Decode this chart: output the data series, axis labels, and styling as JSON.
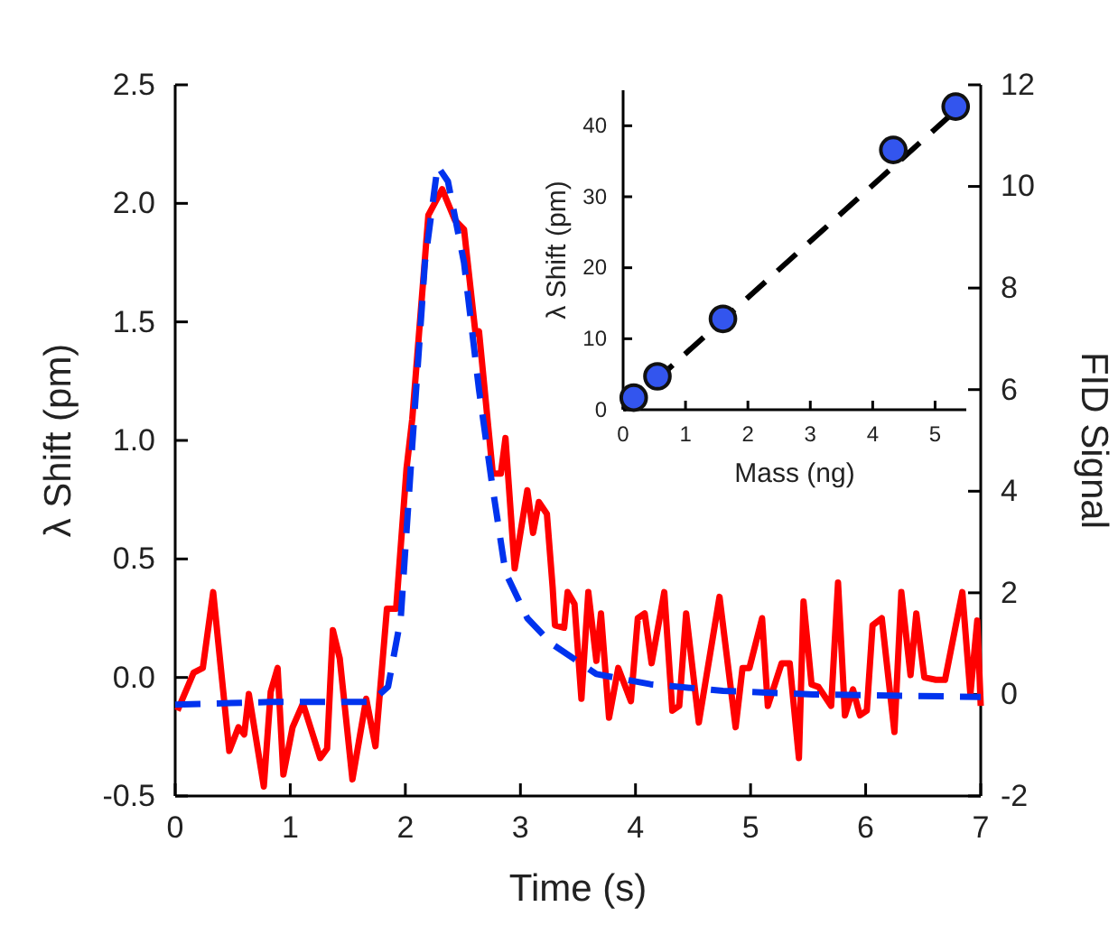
{
  "chart_data": [
    {
      "type": "line",
      "xlabel": "Time (s)",
      "ylabel": "λ Shift (pm)",
      "y2label": "FID Signal",
      "xlim": [
        0,
        7
      ],
      "xticks": [
        0,
        1,
        2,
        3,
        4,
        5,
        6,
        7
      ],
      "ylim": [
        -0.5,
        2.5
      ],
      "yticks": [
        {
          "value": -0.5,
          "label": "-0.5"
        },
        {
          "value": 0,
          "label": "0.0"
        },
        {
          "value": 0.5,
          "label": "0.5"
        },
        {
          "value": 1,
          "label": "1.0"
        },
        {
          "value": 1.5,
          "label": "1.5"
        },
        {
          "value": 2,
          "label": "2.0"
        },
        {
          "value": 2.5,
          "label": "2.5"
        }
      ],
      "y2lim": [
        -2,
        12
      ],
      "y2ticks": [
        -2,
        0,
        2,
        4,
        6,
        8,
        10,
        12
      ],
      "marker": "none",
      "series": [
        {
          "color": "#ff0000",
          "line_style": "solid",
          "x": [
            0.02,
            0.16,
            0.24,
            0.33,
            0.47,
            0.55,
            0.6,
            0.64,
            0.77,
            0.83,
            0.89,
            0.94,
            1.02,
            1.11,
            1.26,
            1.32,
            1.37,
            1.43,
            1.54,
            1.66,
            1.74,
            1.84,
            1.92,
            2.01,
            2.06,
            2.2,
            2.32,
            2.43,
            2.51,
            2.61,
            2.64,
            2.76,
            2.83,
            2.87,
            2.95,
            3.06,
            3.11,
            3.16,
            3.23,
            3.28,
            3.3,
            3.38,
            3.41,
            3.47,
            3.53,
            3.59,
            3.66,
            3.7,
            3.77,
            3.85,
            3.96,
            4.02,
            4.08,
            4.14,
            4.25,
            4.32,
            4.38,
            4.44,
            4.55,
            4.73,
            4.87,
            4.93,
            4.99,
            5.1,
            5.15,
            5.27,
            5.34,
            5.42,
            5.46,
            5.53,
            5.59,
            5.7,
            5.76,
            5.82,
            5.89,
            5.95,
            6.01,
            6.06,
            6.14,
            6.25,
            6.31,
            6.39,
            6.44,
            6.51,
            6.61,
            6.69,
            6.84,
            6.91,
            6.97,
            7
          ],
          "values": [
            -0.14,
            0.02,
            0.04,
            0.36,
            -0.31,
            -0.21,
            -0.24,
            -0.07,
            -0.46,
            -0.06,
            0.04,
            -0.41,
            -0.21,
            -0.11,
            -0.34,
            -0.3,
            0.2,
            0.08,
            -0.43,
            -0.09,
            -0.29,
            0.29,
            0.29,
            0.88,
            1.09,
            1.95,
            2.06,
            1.93,
            1.89,
            1.45,
            1.46,
            0.86,
            0.86,
            1.01,
            0.46,
            0.79,
            0.61,
            0.74,
            0.69,
            0.38,
            0.22,
            0.21,
            0.36,
            0.31,
            -0.09,
            0.36,
            0.07,
            0.27,
            -0.17,
            0.04,
            -0.1,
            0.25,
            0.27,
            0.06,
            0.36,
            -0.14,
            -0.12,
            0.27,
            -0.19,
            0.34,
            -0.21,
            0.04,
            0.04,
            0.25,
            -0.12,
            0.06,
            0.06,
            -0.34,
            0.32,
            -0.03,
            -0.04,
            -0.12,
            0.4,
            -0.16,
            -0.05,
            -0.16,
            -0.14,
            0.22,
            0.25,
            -0.23,
            0.36,
            0.01,
            0.27,
            0,
            -0.01,
            -0.01,
            0.36,
            -0.07,
            0.24,
            -0.12
          ]
        },
        {
          "color": "#0033ee",
          "line_style": "dashed",
          "axis": "y2",
          "x": [
            0,
            0.83,
            1.7,
            1.85,
            1.96,
            2.06,
            2.17,
            2.28,
            2.37,
            2.51,
            2.64,
            2.75,
            2.87,
            3.06,
            3.27,
            3.66,
            4.13,
            4.76,
            5.54,
            7
          ],
          "values": [
            -0.2,
            -0.15,
            -0.15,
            0.15,
            1.5,
            4.9,
            8.5,
            10.4,
            10.1,
            8.5,
            6,
            4.2,
            2.4,
            1.5,
            1,
            0.4,
            0.2,
            0.07,
            0,
            -0.05
          ]
        }
      ]
    },
    {
      "type": "scatter",
      "xlabel": "Mass (ng)",
      "ylabel": "λ Shift (pm)",
      "xlim": [
        0,
        5.5
      ],
      "xticks": [
        0,
        1,
        2,
        3,
        4,
        5
      ],
      "ylim": [
        0,
        45
      ],
      "yticks": [
        0,
        10,
        20,
        30,
        40
      ],
      "series": [
        {
          "type": "line",
          "color": "#000000",
          "line_style": "dashed",
          "marker": "none",
          "x": [
            0,
            5.3
          ],
          "values": [
            0,
            41.9
          ]
        },
        {
          "type": "scatter",
          "color": "#3355ee",
          "marker": "circle",
          "x": [
            0.17,
            0.55,
            1.6,
            4.33,
            5.33
          ],
          "values": [
            1.7,
            4.7,
            12.8,
            36.6,
            42.7
          ]
        }
      ]
    }
  ]
}
